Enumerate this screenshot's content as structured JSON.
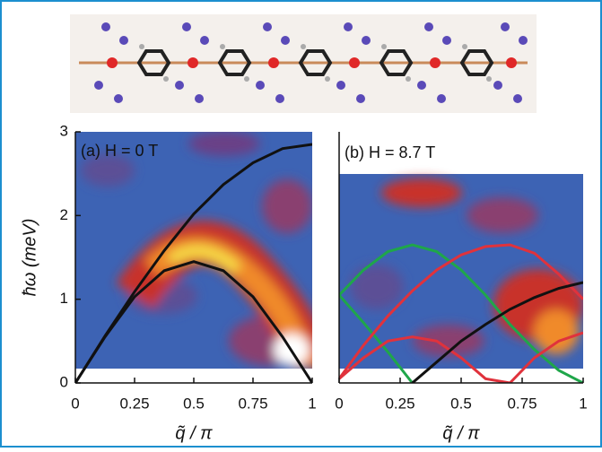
{
  "chart_data": [
    {
      "type": "line",
      "title": "(a) H = 0 T",
      "ylabel": "ħω (meV)",
      "xlabel": "q̃ / π",
      "xlim": [
        0,
        1
      ],
      "xticks": [
        0,
        0.25,
        0.5,
        0.75,
        1
      ],
      "ylim": [
        0,
        3
      ],
      "yticks": [
        0,
        1,
        2,
        3
      ],
      "x": [
        0,
        0.125,
        0.25,
        0.375,
        0.5,
        0.625,
        0.75,
        0.875,
        1
      ],
      "series": [
        {
          "color": "#111111",
          "values": [
            0,
            0.56,
            1.09,
            1.58,
            2.02,
            2.37,
            2.63,
            2.8,
            2.85
          ]
        },
        {
          "color": "#111111",
          "values": [
            0,
            0.55,
            1.03,
            1.34,
            1.45,
            1.34,
            1.03,
            0.55,
            0
          ]
        }
      ]
    },
    {
      "type": "line",
      "title": "(b) H = 8.7 T",
      "xlabel": "q̃ / π",
      "xlim": [
        0,
        1
      ],
      "xticks": [
        0,
        0.25,
        0.5,
        0.75,
        1
      ],
      "ylim": [
        0,
        3
      ],
      "x": [
        0,
        0.1,
        0.2,
        0.3,
        0.4,
        0.5,
        0.6,
        0.7,
        0.8,
        0.9,
        1
      ],
      "series": [
        {
          "color": "#1fa64a",
          "values": [
            1.05,
            1.35,
            1.57,
            1.65,
            1.57,
            1.35,
            1.05,
            0.7,
            0.4,
            0.15,
            0
          ]
        },
        {
          "color": "#1fa64a",
          "values": [
            1.05,
            0.72,
            0.37,
            0,
            null,
            null,
            null,
            null,
            null,
            null,
            null
          ]
        },
        {
          "color": "#e0323c",
          "values": [
            0.05,
            0.45,
            0.8,
            1.1,
            1.35,
            1.53,
            1.63,
            1.65,
            1.55,
            1.3,
            1.0
          ]
        },
        {
          "color": "#e0323c",
          "values": [
            0.05,
            0.3,
            0.5,
            0.55,
            0.5,
            0.3,
            0.05,
            0,
            0.3,
            0.5,
            0.6
          ]
        },
        {
          "color": "#111111",
          "values": [
            null,
            null,
            null,
            0,
            0.25,
            0.5,
            0.7,
            0.88,
            1.02,
            1.13,
            1.2
          ]
        }
      ]
    }
  ]
}
